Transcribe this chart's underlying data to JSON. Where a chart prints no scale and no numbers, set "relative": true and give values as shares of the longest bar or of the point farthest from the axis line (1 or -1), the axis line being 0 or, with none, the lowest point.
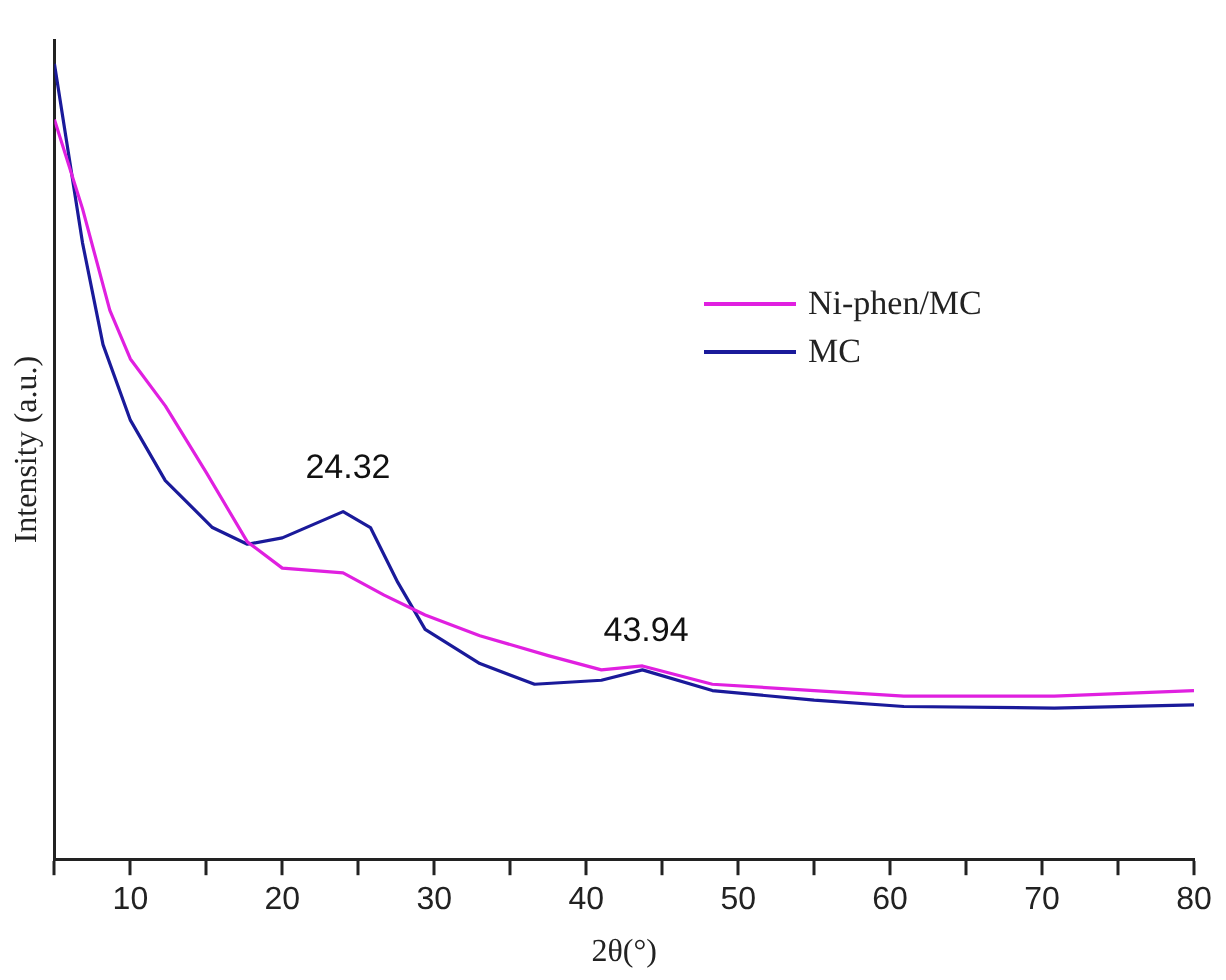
{
  "chart_data": {
    "type": "line",
    "relative": true,
    "xlabel": "2θ(°)",
    "ylabel": "Intensity (a.u.)",
    "xlim": [
      5,
      80
    ],
    "xticks": [
      {
        "value": 5,
        "label": null
      },
      10,
      {
        "value": 15,
        "label": null
      },
      20,
      {
        "value": 25,
        "label": null
      },
      30,
      {
        "value": 35,
        "label": null
      },
      40,
      {
        "value": 45,
        "label": null
      },
      50,
      {
        "value": 55,
        "label": null
      },
      60,
      {
        "value": 65,
        "label": null
      },
      70,
      {
        "value": 75,
        "label": null
      },
      80
    ],
    "grid": false,
    "legend": "top right",
    "marker": "none",
    "line_style": "solid",
    "series": [
      {
        "name": "Ni-phen/MC",
        "color": "#e020e0",
        "x": [
          5,
          6.85,
          8.65,
          10,
          12.3,
          15,
          17.7,
          20,
          24,
          26.7,
          29.4,
          33,
          37.5,
          41,
          43.7,
          48.3,
          55,
          60.9,
          70.8,
          80
        ],
        "values": [
          0.93,
          0.818,
          0.69,
          0.629,
          0.57,
          0.486,
          0.399,
          0.366,
          0.36,
          0.332,
          0.307,
          0.281,
          0.256,
          0.238,
          0.243,
          0.22,
          0.212,
          0.205,
          0.205,
          0.212
        ]
      },
      {
        "name": "MC",
        "color": "#1a1a9a",
        "x": [
          5,
          6.85,
          8.2,
          10,
          12.3,
          15.4,
          17.7,
          20,
          24,
          25.8,
          27.6,
          29.4,
          33,
          36.6,
          41,
          43.7,
          48.3,
          55,
          60.9,
          70.8,
          80
        ],
        "values": [
          1,
          0.775,
          0.647,
          0.552,
          0.476,
          0.417,
          0.396,
          0.404,
          0.437,
          0.417,
          0.348,
          0.289,
          0.246,
          0.22,
          0.225,
          0.238,
          0.212,
          0.2,
          0.192,
          0.19,
          0.194
        ]
      }
    ],
    "annotations": [
      {
        "text": "24.32",
        "x": 24.32,
        "y": 0.45
      },
      {
        "text": "43.94",
        "x": 43.94,
        "y": 0.245
      }
    ]
  }
}
